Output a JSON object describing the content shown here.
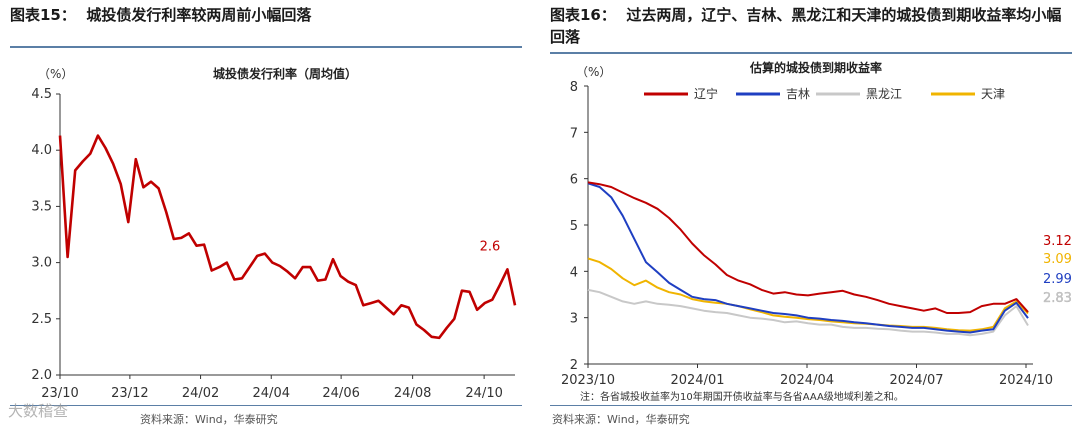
{
  "left": {
    "figure_title": "图表15：  城投债发行利率较两周前小幅回落",
    "footer": "资料来源：Wind，华泰研究",
    "watermark": "大数稽查"
  },
  "right": {
    "figure_title": "图表16：  过去两周，辽宁、吉林、黑龙江和天津的城投债到期收益率均小幅回落",
    "footer": "资料来源：Wind，华泰研究"
  },
  "chart_data": [
    {
      "type": "line",
      "title": "城投债发行利率（周均值）",
      "unit_label": "（%）",
      "ylim": [
        2.0,
        4.5
      ],
      "yticks": [
        "4.5",
        "4.0",
        "3.5",
        "3.0",
        "2.5",
        "2.0"
      ],
      "xticks": [
        "23/10",
        "23/12",
        "24/02",
        "24/04",
        "24/06",
        "24/08",
        "24/10"
      ],
      "x_range": [
        0,
        56
      ],
      "xtick_positions": [
        0,
        8.6,
        17.3,
        26,
        34.6,
        43.4,
        52.2
      ],
      "series": [
        {
          "name": "城投债发行利率",
          "color": "#c00000",
          "values": [
            4.13,
            3.05,
            3.82,
            3.9,
            3.97,
            4.13,
            4.02,
            3.88,
            3.7,
            3.36,
            3.92,
            3.67,
            3.72,
            3.66,
            3.45,
            3.21,
            3.22,
            3.26,
            3.15,
            3.16,
            2.93,
            2.96,
            3.0,
            2.85,
            2.86,
            2.96,
            3.06,
            3.08,
            3.0,
            2.97,
            2.92,
            2.86,
            2.96,
            2.96,
            2.84,
            2.85,
            3.03,
            2.88,
            2.83,
            2.8,
            2.62,
            2.64,
            2.66,
            2.6,
            2.54,
            2.62,
            2.6,
            2.45,
            2.4,
            2.34,
            2.33,
            2.42,
            2.5,
            2.75,
            2.74,
            2.58,
            2.64,
            2.67,
            2.8,
            2.94,
            2.62
          ]
        }
      ],
      "end_label": "2.6"
    },
    {
      "type": "line",
      "title": "估算的城投债到期收益率",
      "unit_label": "（%）",
      "ylim": [
        2,
        8
      ],
      "yticks": [
        "8",
        "7",
        "6",
        "5",
        "4",
        "3",
        "2"
      ],
      "xticks": [
        "2023/10",
        "2024/01",
        "2024/04",
        "2024/07",
        "2024/10"
      ],
      "note": "注：各省城投收益率为10年期国开债收益率与各省AAA级地域利差之和。",
      "legend": [
        "辽宁",
        "吉林",
        "黑龙江",
        "天津"
      ],
      "series": [
        {
          "name": "辽宁",
          "color": "#c00000",
          "values": [
            5.92,
            5.88,
            5.82,
            5.7,
            5.58,
            5.48,
            5.35,
            5.15,
            4.9,
            4.6,
            4.35,
            4.15,
            3.92,
            3.8,
            3.72,
            3.6,
            3.52,
            3.55,
            3.5,
            3.48,
            3.52,
            3.55,
            3.58,
            3.5,
            3.45,
            3.38,
            3.3,
            3.25,
            3.2,
            3.15,
            3.2,
            3.1,
            3.1,
            3.12,
            3.25,
            3.3,
            3.3,
            3.4,
            3.12
          ],
          "end_label": "3.12"
        },
        {
          "name": "吉林",
          "color": "#1f3fc2",
          "values": [
            5.9,
            5.82,
            5.6,
            5.2,
            4.7,
            4.2,
            3.98,
            3.75,
            3.6,
            3.45,
            3.4,
            3.38,
            3.3,
            3.25,
            3.2,
            3.15,
            3.1,
            3.08,
            3.05,
            3.0,
            2.98,
            2.95,
            2.93,
            2.9,
            2.88,
            2.85,
            2.82,
            2.8,
            2.78,
            2.78,
            2.75,
            2.72,
            2.7,
            2.68,
            2.72,
            2.75,
            3.15,
            3.32,
            2.99
          ],
          "end_label": "2.99"
        },
        {
          "name": "黑龙江",
          "color": "#c8c8c8",
          "values": [
            3.6,
            3.55,
            3.45,
            3.35,
            3.3,
            3.35,
            3.3,
            3.28,
            3.25,
            3.2,
            3.15,
            3.12,
            3.1,
            3.05,
            3.0,
            2.98,
            2.95,
            2.9,
            2.92,
            2.88,
            2.85,
            2.85,
            2.8,
            2.78,
            2.78,
            2.76,
            2.75,
            2.72,
            2.7,
            2.7,
            2.68,
            2.65,
            2.65,
            2.62,
            2.65,
            2.7,
            3.05,
            3.25,
            2.83
          ],
          "end_label": "2.83"
        },
        {
          "name": "天津",
          "color": "#f0b400",
          "values": [
            4.28,
            4.2,
            4.05,
            3.85,
            3.7,
            3.8,
            3.65,
            3.55,
            3.5,
            3.4,
            3.35,
            3.32,
            3.3,
            3.25,
            3.18,
            3.12,
            3.05,
            3.02,
            3.0,
            2.97,
            2.95,
            2.92,
            2.9,
            2.88,
            2.87,
            2.85,
            2.83,
            2.82,
            2.8,
            2.8,
            2.78,
            2.75,
            2.73,
            2.72,
            2.75,
            2.8,
            3.2,
            3.35,
            3.09
          ],
          "end_label": "3.09"
        }
      ]
    }
  ]
}
